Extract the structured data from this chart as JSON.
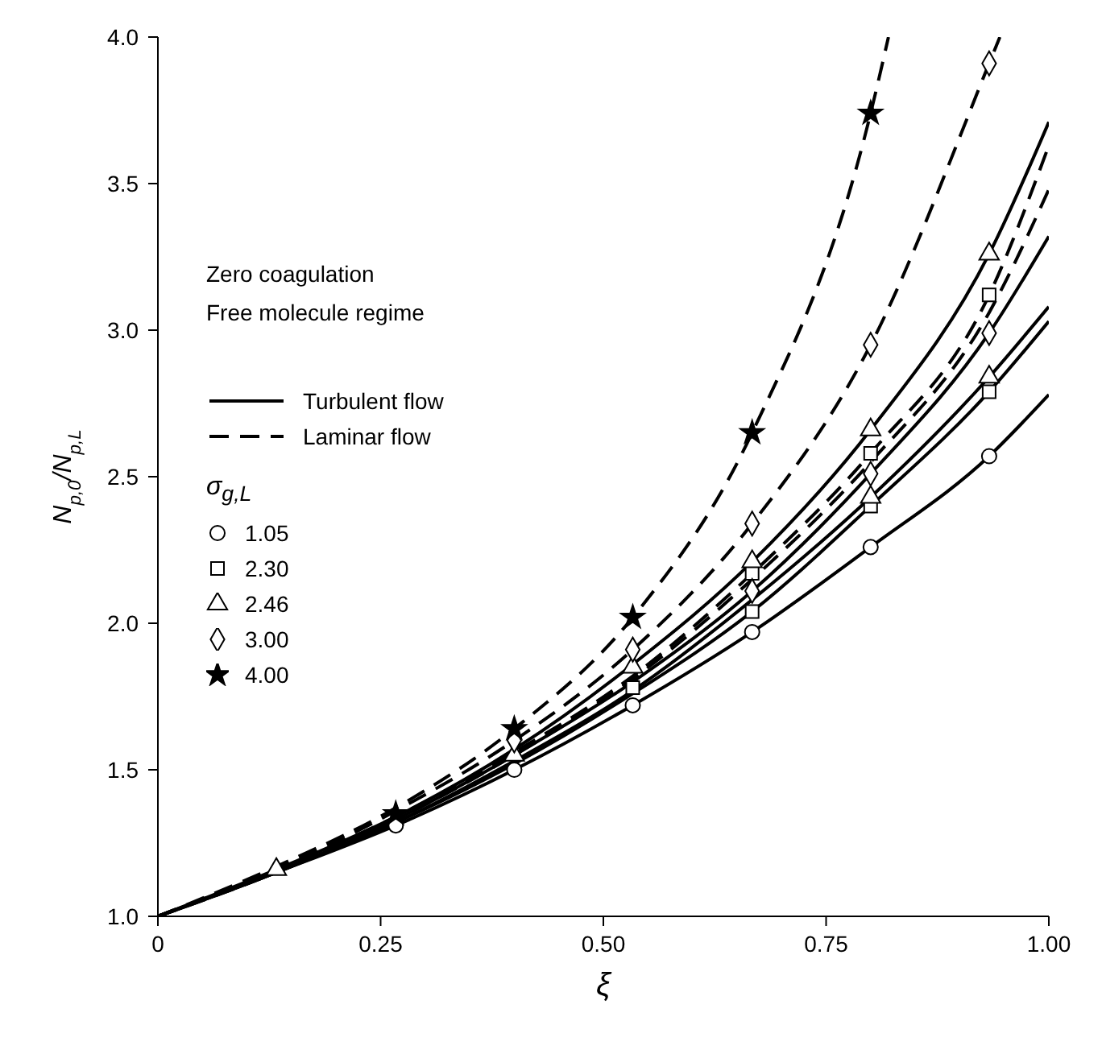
{
  "chart_data": {
    "type": "line",
    "xlabel": "ξ",
    "ylabel": "N$_{p,0}$/N$_{p,L}$",
    "legend_title": "σ$_{g,L}$",
    "annotations": [
      "Zero coagulation",
      "Free molecule regime"
    ],
    "xlim": [
      0,
      1
    ],
    "xticks": [
      0,
      0.25,
      {
        "value": 0.5,
        "label": "0.50"
      },
      0.75,
      {
        "value": 1,
        "label": "1.00"
      }
    ],
    "ylim": [
      1,
      4
    ],
    "yticks": [
      {
        "value": 1,
        "label": "1.0"
      },
      1.5,
      {
        "value": 2,
        "label": "2.0"
      },
      2.5,
      {
        "value": 3,
        "label": "3.0"
      },
      3.5,
      {
        "value": 4,
        "label": "4.0"
      }
    ],
    "grid": false,
    "legend": "left",
    "marker": "none",
    "series": [
      {
        "name": "Turbulent flow",
        "color": "#000000",
        "line_style": "solid",
        "x": [
          0,
          0.133,
          0.267,
          0.4,
          0.533,
          0.667,
          0.8,
          0.933,
          1
        ],
        "values": [
          1,
          1.16,
          1.34,
          1.57,
          1.86,
          2.21,
          2.66,
          3.26,
          3.71
        ]
      },
      {
        "color": "#000000",
        "line_style": "solid",
        "x": [
          0,
          0.133,
          0.267,
          0.4,
          0.533,
          0.667,
          0.8,
          0.933,
          1
        ],
        "values": [
          1,
          1.15,
          1.33,
          1.55,
          1.8,
          2.11,
          2.51,
          2.99,
          3.32
        ]
      },
      {
        "color": "#000000",
        "line_style": "solid",
        "x": [
          0,
          0.133,
          0.267,
          0.4,
          0.533,
          0.667,
          0.8,
          0.933,
          1
        ],
        "values": [
          1,
          1.15,
          1.32,
          1.53,
          1.77,
          2.08,
          2.43,
          2.84,
          3.08
        ]
      },
      {
        "color": "#000000",
        "line_style": "solid",
        "x": [
          0,
          0.133,
          0.267,
          0.4,
          0.533,
          0.667,
          0.8,
          0.933,
          1
        ],
        "values": [
          1,
          1.15,
          1.32,
          1.52,
          1.76,
          2.04,
          2.4,
          2.79,
          3.03
        ]
      },
      {
        "color": "#000000",
        "line_style": "solid",
        "x": [
          0,
          0.133,
          0.267,
          0.4,
          0.533,
          0.667,
          0.8,
          0.933,
          1
        ],
        "values": [
          1,
          1.15,
          1.31,
          1.5,
          1.72,
          1.97,
          2.26,
          2.57,
          2.78
        ]
      },
      {
        "name": "Laminar flow",
        "color": "#000000",
        "line_style": "dashed",
        "x": [
          0,
          0.133,
          0.267,
          0.4,
          0.533,
          0.667,
          0.8,
          0.82
        ],
        "values": [
          1,
          1.17,
          1.37,
          1.64,
          2.02,
          2.65,
          3.74,
          4
        ]
      },
      {
        "color": "#000000",
        "line_style": "dashed",
        "x": [
          0,
          0.133,
          0.267,
          0.4,
          0.533,
          0.667,
          0.8,
          0.933,
          0.945
        ],
        "values": [
          1,
          1.16,
          1.36,
          1.6,
          1.91,
          2.34,
          2.95,
          3.91,
          4
        ]
      },
      {
        "color": "#000000",
        "line_style": "dashed",
        "x": [
          0,
          0.133,
          0.267,
          0.4,
          0.533,
          0.667,
          0.8,
          0.933,
          1
        ],
        "values": [
          1,
          1.16,
          1.34,
          1.56,
          1.82,
          2.17,
          2.58,
          3.12,
          3.63
        ]
      },
      {
        "color": "#000000",
        "line_style": "dashed",
        "x": [
          0,
          0.133,
          0.267,
          0.4,
          0.533,
          0.667,
          0.8,
          0.933,
          1
        ],
        "values": [
          1,
          1.15,
          1.33,
          1.55,
          1.81,
          2.15,
          2.55,
          3.06,
          3.48
        ]
      },
      {
        "type": "scatter",
        "name": "1.05",
        "marker": "circle",
        "color": "#000000",
        "x": [
          0.267,
          0.4,
          0.533,
          0.667,
          0.8,
          0.933
        ],
        "values": [
          1.31,
          1.5,
          1.72,
          1.97,
          2.26,
          2.57
        ]
      },
      {
        "type": "scatter",
        "name": "2.30",
        "marker": "square",
        "color": "#000000",
        "x": [
          0.533,
          0.667,
          0.667,
          0.8,
          0.8,
          0.933,
          0.933
        ],
        "values": [
          1.78,
          2.04,
          2.17,
          2.4,
          2.58,
          2.79,
          3.12
        ]
      },
      {
        "type": "scatter",
        "name": "2.46",
        "marker": "triangle",
        "color": "#000000",
        "x": [
          0.133,
          0.4,
          0.533,
          0.667,
          0.8,
          0.8,
          0.933,
          0.933
        ],
        "values": [
          1.16,
          1.55,
          1.85,
          2.21,
          2.43,
          2.66,
          2.84,
          3.26
        ]
      },
      {
        "type": "scatter",
        "name": "3.00",
        "marker": "diamond",
        "color": "#000000",
        "x": [
          0.4,
          0.533,
          0.667,
          0.667,
          0.8,
          0.8,
          0.933,
          0.933
        ],
        "values": [
          1.6,
          1.91,
          2.11,
          2.34,
          2.51,
          2.95,
          2.99,
          3.91
        ]
      },
      {
        "type": "scatter",
        "name": "4.00",
        "marker": "star",
        "color": "#000000",
        "x": [
          0.267,
          0.4,
          0.533,
          0.667,
          0.8
        ],
        "values": [
          1.35,
          1.64,
          2.02,
          2.65,
          3.74
        ]
      }
    ]
  }
}
